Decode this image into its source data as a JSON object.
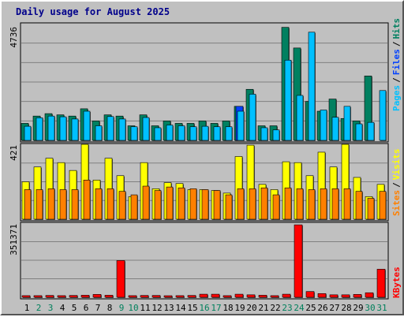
{
  "title": "Daily usage for August 2025",
  "colors": {
    "hits": "#008060",
    "files": "#0040ff",
    "pages": "#00c0ff",
    "visits": "#ffff00",
    "sites": "#ff8000",
    "kbytes": "#ff0000",
    "weekend": "#00805c",
    "weekday": "#000000"
  },
  "chart_data": [
    {
      "type": "bar",
      "ylabel": "4736",
      "legend": {
        "c": "Pages",
        "b": "Files",
        "a": "Hits",
        "sep": "/"
      },
      "ymax": 4736,
      "series": [
        {
          "name": "Hits",
          "values": [
            700,
            1000,
            1100,
            1050,
            1000,
            1300,
            800,
            1050,
            1000,
            600,
            1050,
            600,
            800,
            700,
            700,
            800,
            700,
            800,
            1400,
            2100,
            600,
            600,
            4650,
            3800,
            1600,
            1200,
            1700,
            900,
            800,
            2650,
            0
          ]
        },
        {
          "name": "Files",
          "values": [
            0,
            0,
            0,
            0,
            0,
            0,
            0,
            0,
            0,
            0,
            0,
            0,
            0,
            0,
            0,
            0,
            0,
            0,
            1400,
            0,
            0,
            0,
            0,
            0,
            0,
            0,
            0,
            0,
            0,
            0,
            0
          ]
        },
        {
          "name": "Pages",
          "values": [
            580,
            930,
            1000,
            970,
            880,
            1200,
            600,
            980,
            880,
            560,
            940,
            520,
            630,
            600,
            560,
            580,
            560,
            560,
            1200,
            1900,
            520,
            430,
            3300,
            1850,
            4450,
            1250,
            950,
            1400,
            680,
            740,
            2050
          ]
        }
      ]
    },
    {
      "type": "bar",
      "ylabel": "421",
      "legend": {
        "b": "Sites",
        "a": "Visits",
        "sep": "/"
      },
      "ymax": 421,
      "series": [
        {
          "name": "Visits",
          "values": [
            215,
            300,
            350,
            325,
            280,
            430,
            225,
            350,
            250,
            130,
            325,
            175,
            210,
            205,
            170,
            170,
            165,
            150,
            360,
            425,
            200,
            170,
            330,
            325,
            250,
            385,
            300,
            430,
            240,
            130,
            200
          ]
        },
        {
          "name": "Sites",
          "values": [
            170,
            170,
            175,
            170,
            170,
            225,
            175,
            175,
            160,
            140,
            190,
            165,
            185,
            180,
            175,
            170,
            165,
            140,
            175,
            175,
            180,
            140,
            180,
            175,
            170,
            175,
            175,
            175,
            160,
            120,
            160
          ]
        }
      ]
    },
    {
      "type": "bar",
      "ylabel": "351371",
      "legend": {
        "a": "KBytes"
      },
      "ymax": 351371,
      "series": [
        {
          "name": "KBytes",
          "values": [
            8000,
            8000,
            9000,
            8000,
            9000,
            10000,
            14000,
            10000,
            178000,
            8000,
            9000,
            9000,
            7000,
            8000,
            9000,
            15000,
            15000,
            8000,
            15000,
            12000,
            10000,
            8000,
            15000,
            351000,
            28000,
            18000,
            12000,
            12000,
            14000,
            22000,
            136000
          ]
        }
      ]
    }
  ],
  "days": [
    "1",
    "2",
    "3",
    "4",
    "5",
    "6",
    "7",
    "8",
    "9",
    "10",
    "11",
    "12",
    "13",
    "14",
    "15",
    "16",
    "17",
    "18",
    "19",
    "20",
    "21",
    "22",
    "23",
    "24",
    "25",
    "26",
    "27",
    "28",
    "29",
    "30",
    "31"
  ],
  "weekend_days": [
    "2",
    "3",
    "9",
    "10",
    "16",
    "17",
    "23",
    "24",
    "30",
    "31"
  ]
}
